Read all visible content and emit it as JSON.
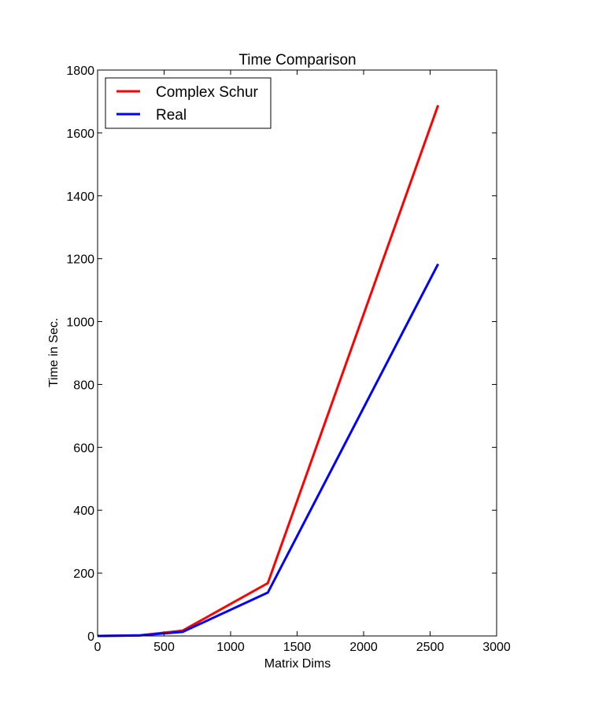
{
  "chart_data": {
    "type": "line",
    "title": "Time Comparison",
    "xlabel": "Matrix Dims",
    "ylabel": "Time in Sec.",
    "xlim": [
      0,
      3000
    ],
    "ylim": [
      0,
      1800
    ],
    "xticks": [
      0,
      500,
      1000,
      1500,
      2000,
      2500,
      3000
    ],
    "yticks": [
      0,
      200,
      400,
      600,
      800,
      1000,
      1200,
      1400,
      1600,
      1800
    ],
    "xtick_labels": [
      "0",
      "500",
      "1000",
      "1500",
      "2000",
      "2500",
      "3000"
    ],
    "ytick_labels": [
      "0",
      "200",
      "400",
      "600",
      "800",
      "1000",
      "1200",
      "1400",
      "1600",
      "1800"
    ],
    "grid": false,
    "legend": "top-left",
    "x": [
      0,
      320,
      640,
      1280,
      2560
    ],
    "series": [
      {
        "name": "Complex Schur",
        "color": "#ff0000",
        "values": [
          0,
          2,
          17,
          168,
          1688
        ]
      },
      {
        "name": "Real",
        "color": "#0000ff",
        "values": [
          0,
          2,
          13,
          138,
          1183
        ]
      }
    ]
  }
}
